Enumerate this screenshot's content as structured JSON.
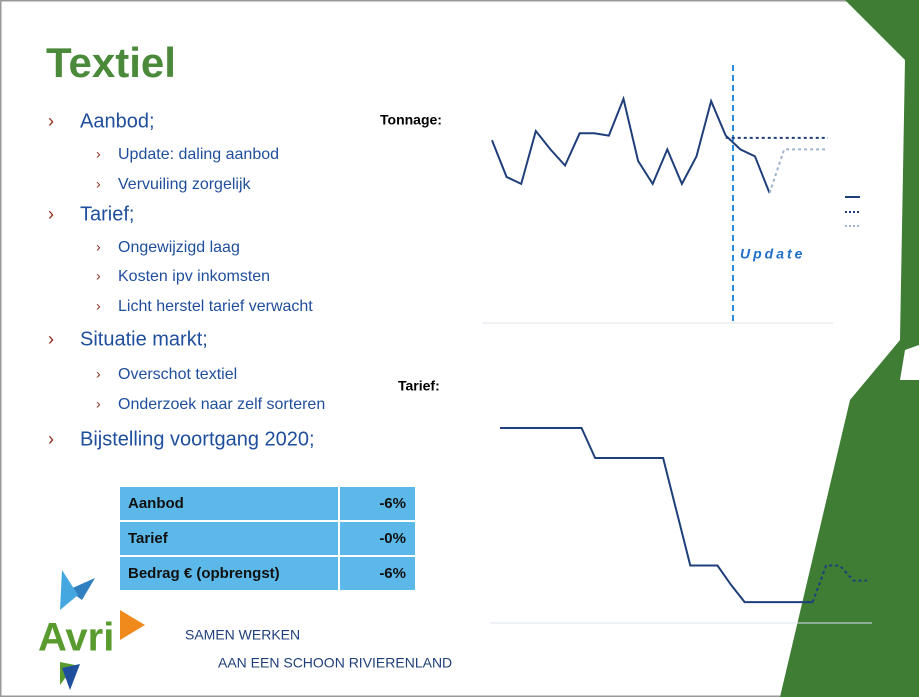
{
  "title": "Textiel",
  "bullets": [
    {
      "text": "Aanbod;",
      "sub": [
        "Update: daling aanbod",
        "Vervuiling zorgelijk"
      ]
    },
    {
      "text": "Tarief;",
      "sub": [
        "Ongewijzigd laag",
        "Kosten ipv inkomsten",
        "Licht herstel tarief verwacht"
      ]
    },
    {
      "text": "Situatie markt;",
      "sub": [
        "Overschot textiel",
        "Onderzoek naar zelf sorteren"
      ]
    },
    {
      "text": "Bijstelling voortgang 2020;",
      "sub": []
    }
  ],
  "table": {
    "rows": [
      [
        "Aanbod",
        "-6%"
      ],
      [
        "Tarief",
        "-0%"
      ],
      [
        "Bedrag € (opbrengst)",
        "-6%"
      ]
    ]
  },
  "logo": "Avri",
  "slogan": [
    "SAMEN WERKEN",
    "AAN EEN SCHOON RIVIERENLAND"
  ],
  "charts": [
    {
      "type": "line",
      "label": "Tonnage:",
      "annotation": "Update",
      "ylim": [
        0,
        10
      ],
      "series": [
        {
          "color": "#1f3f7a",
          "style": "solid",
          "values": [
            7.6,
            6.0,
            5.7,
            8.0,
            7.2,
            6.5,
            7.9,
            7.9,
            7.8,
            9.4,
            6.7,
            5.7,
            7.2,
            5.7,
            6.9,
            9.3,
            7.8,
            7.2,
            6.9,
            5.3,
            null,
            null,
            null,
            null
          ]
        },
        {
          "color": "#1f3f7a",
          "style": "dotted",
          "values": [
            null,
            null,
            null,
            null,
            null,
            null,
            null,
            null,
            null,
            null,
            null,
            null,
            null,
            null,
            null,
            null,
            7.7,
            7.7,
            7.7,
            7.7,
            7.7,
            7.7,
            7.7,
            7.7
          ]
        },
        {
          "color": "#9fb3cf",
          "style": "dotted",
          "values": [
            null,
            null,
            null,
            null,
            null,
            null,
            null,
            null,
            null,
            null,
            null,
            null,
            null,
            null,
            null,
            null,
            null,
            null,
            null,
            5.3,
            7.2,
            7.2,
            7.2,
            7.2
          ]
        }
      ]
    },
    {
      "type": "line",
      "label": "Tarief:",
      "ylim": [
        0,
        10
      ],
      "series": [
        {
          "color": "#1f3f7a",
          "style": "solid",
          "values": [
            8.7,
            8.7,
            8.7,
            8.7,
            8.7,
            8.7,
            8.7,
            7.3,
            7.3,
            7.3,
            7.3,
            7.3,
            7.3,
            4.8,
            2.3,
            2.3,
            2.3,
            1.4,
            0.6,
            0.6,
            0.6,
            0.6,
            0.6,
            0.6,
            null,
            null,
            null,
            null
          ]
        },
        {
          "color": "#1f3f7a",
          "style": "dotted",
          "values": [
            null,
            null,
            null,
            null,
            null,
            null,
            null,
            null,
            null,
            null,
            null,
            null,
            null,
            null,
            null,
            null,
            null,
            null,
            null,
            null,
            null,
            null,
            null,
            0.6,
            2.3,
            2.3,
            1.6,
            1.6
          ]
        }
      ]
    }
  ]
}
